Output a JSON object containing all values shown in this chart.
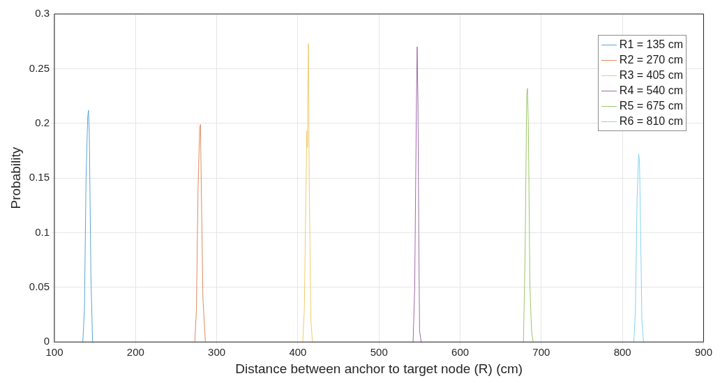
{
  "chart_data": {
    "type": "line",
    "xlabel": "Distance between anchor to target node (R) (cm)",
    "ylabel": "Probability",
    "xlim": [
      100,
      900
    ],
    "xticks": [
      100,
      200,
      300,
      400,
      500,
      600,
      700,
      800,
      900
    ],
    "ylim": [
      0,
      0.3
    ],
    "yticks": [
      0,
      0.05,
      0.1,
      0.15,
      0.2,
      0.25,
      0.3
    ],
    "grid": true,
    "legend": "top right",
    "marker": "none",
    "line_style": "solid",
    "series": [
      {
        "name": "R1 = 135 cm",
        "color": "#5aa6d6",
        "x": [
          135,
          137,
          139,
          141,
          142,
          143,
          145,
          147
        ],
        "values": [
          0,
          0.03,
          0.15,
          0.205,
          0.212,
          0.19,
          0.06,
          0
        ]
      },
      {
        "name": "R2 = 270 cm",
        "color": "#e08a5f",
        "x": [
          273,
          275,
          277,
          279,
          280,
          281,
          283,
          286
        ],
        "values": [
          0,
          0.03,
          0.14,
          0.195,
          0.199,
          0.14,
          0.04,
          0
        ]
      },
      {
        "name": "R3 = 405 cm",
        "color": "#efcc6a",
        "x": [
          406,
          408,
          410,
          411,
          411.5,
          412,
          413,
          414,
          416,
          418
        ],
        "values": [
          0,
          0.03,
          0.14,
          0.193,
          0.178,
          0.22,
          0.273,
          0.15,
          0.02,
          0
        ]
      },
      {
        "name": "R4 = 540 cm",
        "color": "#a06aa8",
        "x": [
          542,
          544,
          546,
          547,
          548,
          549,
          550,
          552
        ],
        "values": [
          0,
          0.05,
          0.21,
          0.27,
          0.22,
          0.1,
          0.01,
          0
        ]
      },
      {
        "name": "R5 = 675 cm",
        "color": "#9cc66a",
        "x": [
          678,
          680,
          682,
          683,
          684,
          686,
          688,
          690
        ],
        "values": [
          0,
          0.08,
          0.225,
          0.232,
          0.2,
          0.05,
          0.01,
          0
        ]
      },
      {
        "name": "R6 = 810 cm",
        "color": "#85d3f2",
        "x": [
          814,
          816,
          818,
          820,
          821,
          822,
          824,
          826
        ],
        "values": [
          0,
          0.03,
          0.13,
          0.172,
          0.165,
          0.12,
          0.02,
          0
        ]
      }
    ]
  }
}
